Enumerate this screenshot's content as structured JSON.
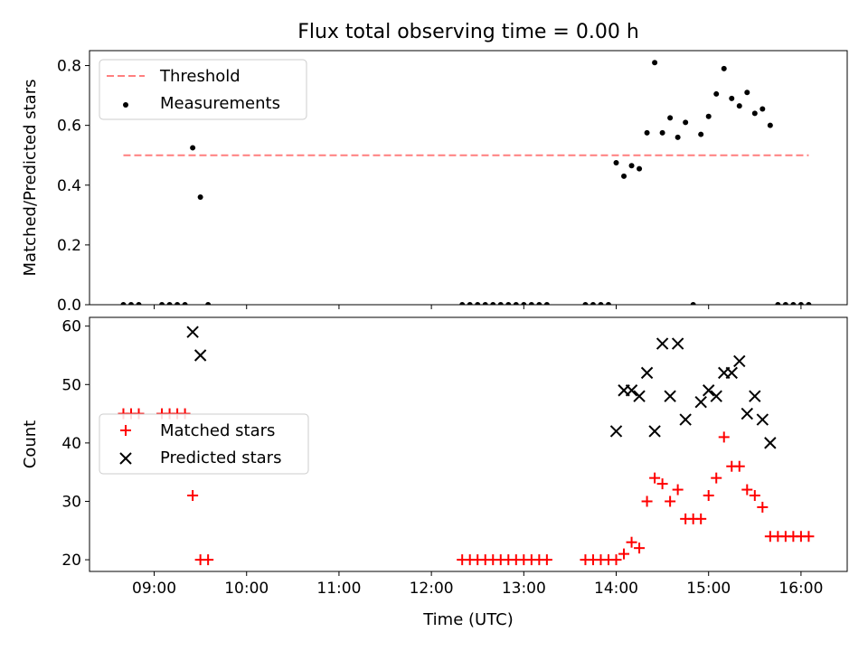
{
  "figure": {
    "title": "Flux total observing time = 0.00 h",
    "xlabel": "Time (UTC)"
  },
  "chart_data": [
    {
      "type": "scatter",
      "ylabel": "Matched/Predicted stars",
      "xlim": [
        "08:18",
        "16:30"
      ],
      "ylim": [
        0,
        0.85
      ],
      "yticks": [
        0.0,
        0.2,
        0.4,
        0.6,
        0.8
      ],
      "xticks": [
        "09:00",
        "10:00",
        "11:00",
        "12:00",
        "13:00",
        "14:00",
        "15:00",
        "16:00"
      ],
      "legend": "top-left",
      "colors": {
        "threshold": "#ff7f7f",
        "measurements": "#000000"
      },
      "threshold": {
        "name": "Threshold",
        "y": 0.5,
        "x_start": "08:40",
        "x_end": "16:05"
      },
      "series": [
        {
          "name": "Measurements",
          "points": [
            [
              "08:40",
              0.0
            ],
            [
              "08:45",
              0.0
            ],
            [
              "08:50",
              0.0
            ],
            [
              "09:05",
              0.0
            ],
            [
              "09:10",
              0.0
            ],
            [
              "09:15",
              0.0
            ],
            [
              "09:20",
              0.0
            ],
            [
              "09:25",
              0.525
            ],
            [
              "09:30",
              0.36
            ],
            [
              "09:35",
              0.0
            ],
            [
              "12:20",
              0.0
            ],
            [
              "12:25",
              0.0
            ],
            [
              "12:30",
              0.0
            ],
            [
              "12:35",
              0.0
            ],
            [
              "12:40",
              0.0
            ],
            [
              "12:45",
              0.0
            ],
            [
              "12:50",
              0.0
            ],
            [
              "12:55",
              0.0
            ],
            [
              "13:00",
              0.0
            ],
            [
              "13:05",
              0.0
            ],
            [
              "13:10",
              0.0
            ],
            [
              "13:15",
              0.0
            ],
            [
              "13:40",
              0.0
            ],
            [
              "13:45",
              0.0
            ],
            [
              "13:50",
              0.0
            ],
            [
              "13:55",
              0.0
            ],
            [
              "14:00",
              0.475
            ],
            [
              "14:05",
              0.43
            ],
            [
              "14:10",
              0.465
            ],
            [
              "14:15",
              0.455
            ],
            [
              "14:20",
              0.575
            ],
            [
              "14:25",
              0.81
            ],
            [
              "14:30",
              0.575
            ],
            [
              "14:35",
              0.625
            ],
            [
              "14:40",
              0.56
            ],
            [
              "14:45",
              0.61
            ],
            [
              "14:50",
              0.0
            ],
            [
              "14:55",
              0.57
            ],
            [
              "15:00",
              0.63
            ],
            [
              "15:05",
              0.705
            ],
            [
              "15:10",
              0.79
            ],
            [
              "15:15",
              0.69
            ],
            [
              "15:20",
              0.665
            ],
            [
              "15:25",
              0.71
            ],
            [
              "15:30",
              0.64
            ],
            [
              "15:35",
              0.655
            ],
            [
              "15:40",
              0.6
            ],
            [
              "15:45",
              0.0
            ],
            [
              "15:50",
              0.0
            ],
            [
              "15:55",
              0.0
            ],
            [
              "16:00",
              0.0
            ],
            [
              "16:05",
              0.0
            ]
          ]
        }
      ]
    },
    {
      "type": "scatter",
      "ylabel": "Count",
      "xlim": [
        "08:18",
        "16:30"
      ],
      "ylim": [
        18,
        61.5
      ],
      "yticks": [
        20,
        30,
        40,
        50,
        60
      ],
      "xticks": [
        "09:00",
        "10:00",
        "11:00",
        "12:00",
        "13:00",
        "14:00",
        "15:00",
        "16:00"
      ],
      "legend": "center-left",
      "colors": {
        "matched": "#ff0000",
        "predicted": "#000000"
      },
      "series": [
        {
          "name": "Matched stars",
          "marker": "plus",
          "points": [
            [
              "08:40",
              45
            ],
            [
              "08:45",
              45
            ],
            [
              "08:50",
              45
            ],
            [
              "09:05",
              45
            ],
            [
              "09:10",
              45
            ],
            [
              "09:15",
              45
            ],
            [
              "09:20",
              45
            ],
            [
              "09:25",
              31
            ],
            [
              "09:30",
              20
            ],
            [
              "09:35",
              20
            ],
            [
              "12:20",
              20
            ],
            [
              "12:25",
              20
            ],
            [
              "12:30",
              20
            ],
            [
              "12:35",
              20
            ],
            [
              "12:40",
              20
            ],
            [
              "12:45",
              20
            ],
            [
              "12:50",
              20
            ],
            [
              "12:55",
              20
            ],
            [
              "13:00",
              20
            ],
            [
              "13:05",
              20
            ],
            [
              "13:10",
              20
            ],
            [
              "13:15",
              20
            ],
            [
              "13:40",
              20
            ],
            [
              "13:45",
              20
            ],
            [
              "13:50",
              20
            ],
            [
              "13:55",
              20
            ],
            [
              "14:00",
              20
            ],
            [
              "14:05",
              21
            ],
            [
              "14:10",
              23
            ],
            [
              "14:15",
              22
            ],
            [
              "14:20",
              30
            ],
            [
              "14:25",
              34
            ],
            [
              "14:30",
              33
            ],
            [
              "14:35",
              30
            ],
            [
              "14:40",
              32
            ],
            [
              "14:45",
              27
            ],
            [
              "14:50",
              27
            ],
            [
              "14:55",
              27
            ],
            [
              "15:00",
              31
            ],
            [
              "15:05",
              34
            ],
            [
              "15:10",
              41
            ],
            [
              "15:15",
              36
            ],
            [
              "15:20",
              36
            ],
            [
              "15:25",
              32
            ],
            [
              "15:30",
              31
            ],
            [
              "15:35",
              29
            ],
            [
              "15:40",
              24
            ],
            [
              "15:45",
              24
            ],
            [
              "15:50",
              24
            ],
            [
              "15:55",
              24
            ],
            [
              "16:00",
              24
            ],
            [
              "16:05",
              24
            ]
          ]
        },
        {
          "name": "Predicted stars",
          "marker": "x",
          "points": [
            [
              "09:25",
              59
            ],
            [
              "09:30",
              55
            ],
            [
              "14:00",
              42
            ],
            [
              "14:05",
              49
            ],
            [
              "14:10",
              49
            ],
            [
              "14:15",
              48
            ],
            [
              "14:20",
              52
            ],
            [
              "14:25",
              42
            ],
            [
              "14:30",
              57
            ],
            [
              "14:35",
              48
            ],
            [
              "14:40",
              57
            ],
            [
              "14:45",
              44
            ],
            [
              "14:55",
              47
            ],
            [
              "15:00",
              49
            ],
            [
              "15:05",
              48
            ],
            [
              "15:10",
              52
            ],
            [
              "15:15",
              52
            ],
            [
              "15:20",
              54
            ],
            [
              "15:25",
              45
            ],
            [
              "15:30",
              48
            ],
            [
              "15:35",
              44
            ],
            [
              "15:40",
              40
            ]
          ]
        }
      ]
    }
  ]
}
